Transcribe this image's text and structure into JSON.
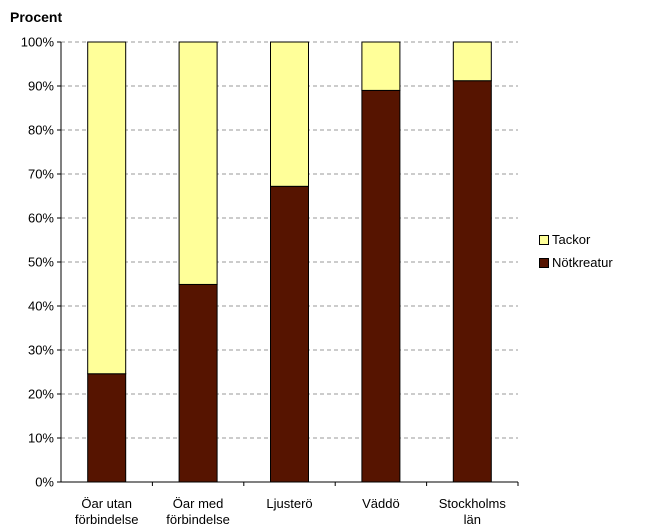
{
  "chart_data": {
    "type": "bar",
    "stacked": true,
    "ylabel": "Procent",
    "categories": [
      [
        "Öar utan",
        "förbindelse"
      ],
      [
        "Öar med",
        "förbindelse"
      ],
      [
        "Ljusterö"
      ],
      [
        "Väddö"
      ],
      [
        "Stockholms",
        "län"
      ]
    ],
    "series": [
      {
        "name": "Nötkreatur",
        "color": "#561400",
        "values": [
          24.6,
          44.9,
          67.2,
          89.0,
          91.2
        ]
      },
      {
        "name": "Tackor",
        "color": "#ffff99",
        "values": [
          75.4,
          55.1,
          32.8,
          11.0,
          8.8
        ]
      }
    ],
    "ylim": [
      0,
      100
    ],
    "yticks": [
      "0%",
      "10%",
      "20%",
      "30%",
      "40%",
      "50%",
      "60%",
      "70%",
      "80%",
      "90%",
      "100%"
    ],
    "grid": true,
    "legend_position": "right"
  }
}
